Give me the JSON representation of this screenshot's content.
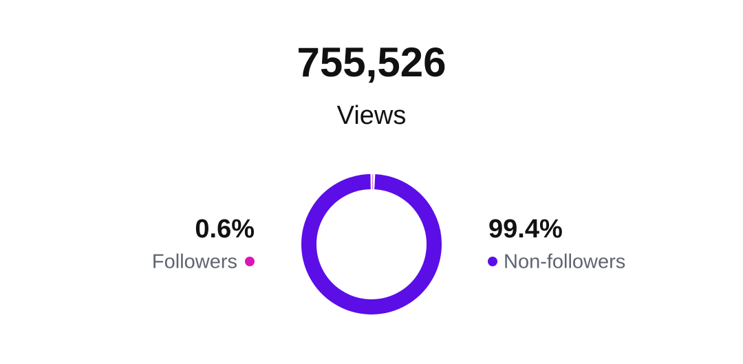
{
  "chart_data": {
    "type": "donut",
    "title": "755,526",
    "subtitle": "Views",
    "categories": [
      "Followers",
      "Non-followers"
    ],
    "values": [
      0.6,
      99.4
    ],
    "value_labels": [
      "0.6%",
      "99.4%"
    ],
    "colors": [
      "#d916b8",
      "#5b0ee6"
    ]
  }
}
